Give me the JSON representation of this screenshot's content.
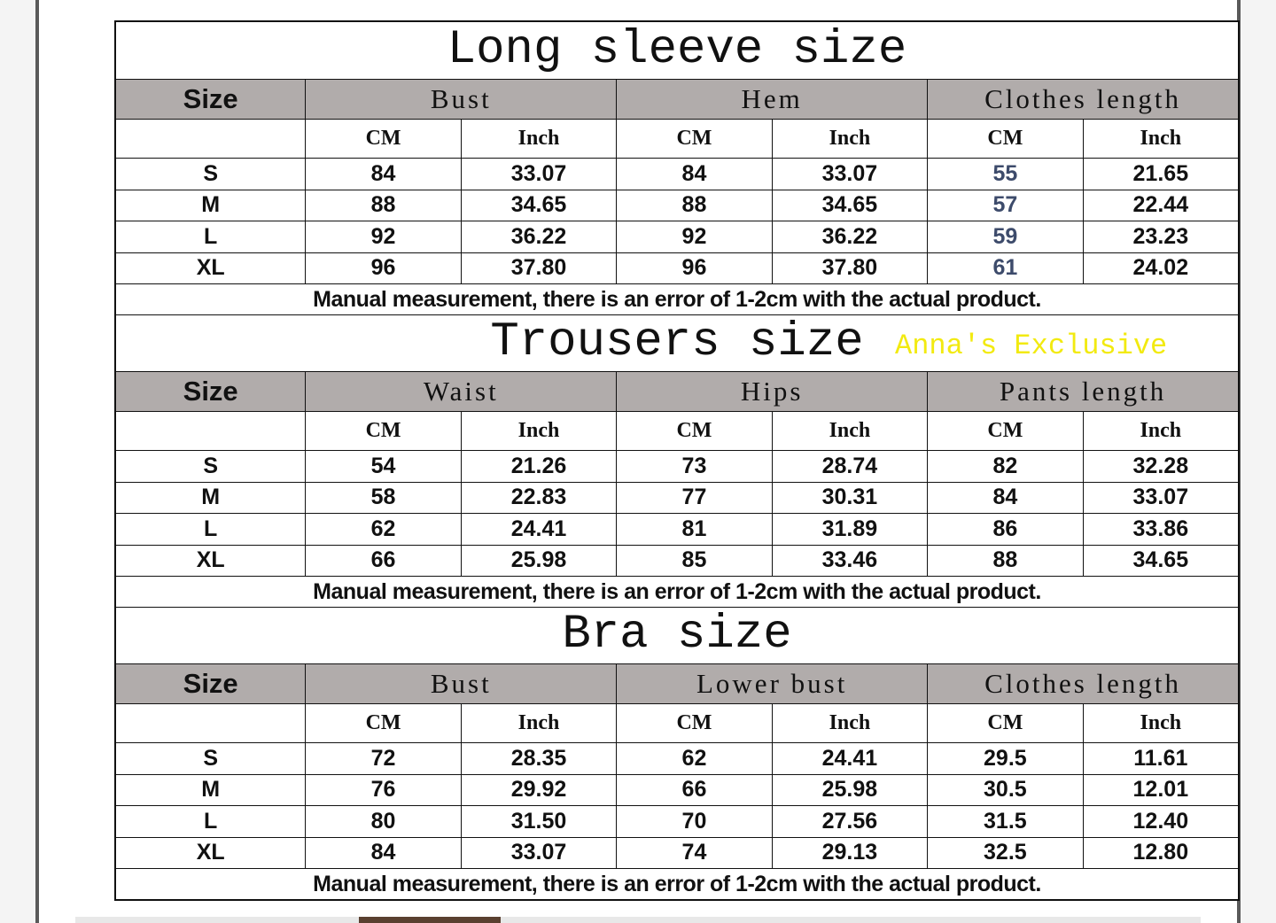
{
  "sections": [
    {
      "title": "Long sleeve size",
      "size_label": "Size",
      "groups": [
        "Bust",
        "Hem",
        "Clothes length"
      ],
      "units": [
        "CM",
        "Inch",
        "CM",
        "Inch",
        "CM",
        "Inch"
      ],
      "rows": [
        [
          "S",
          "84",
          "33.07",
          "84",
          "33.07",
          "55",
          "21.65"
        ],
        [
          "M",
          "88",
          "34.65",
          "88",
          "34.65",
          "57",
          "22.44"
        ],
        [
          "L",
          "92",
          "36.22",
          "92",
          "36.22",
          "59",
          "23.23"
        ],
        [
          "XL",
          "96",
          "37.80",
          "96",
          "37.80",
          "61",
          "24.02"
        ]
      ],
      "highlight_column": 5,
      "note": "Manual measurement, there is an error of 1-2cm with the actual product."
    },
    {
      "title": "Trousers size",
      "size_label": "Size",
      "groups": [
        "Waist",
        "Hips",
        "Pants length"
      ],
      "units": [
        "CM",
        "Inch",
        "CM",
        "Inch",
        "CM",
        "Inch"
      ],
      "rows": [
        [
          "S",
          "54",
          "21.26",
          "73",
          "28.74",
          "82",
          "32.28"
        ],
        [
          "M",
          "58",
          "22.83",
          "77",
          "30.31",
          "84",
          "33.07"
        ],
        [
          "L",
          "62",
          "24.41",
          "81",
          "31.89",
          "86",
          "33.86"
        ],
        [
          "XL",
          "66",
          "25.98",
          "85",
          "33.46",
          "88",
          "34.65"
        ]
      ],
      "note": "Manual measurement, there is an error of 1-2cm with the actual product."
    },
    {
      "title": "Bra size",
      "size_label": "Size",
      "groups": [
        "Bust",
        "Lower bust",
        "Clothes length"
      ],
      "units": [
        "CM",
        "Inch",
        "CM",
        "Inch",
        "CM",
        "Inch"
      ],
      "rows": [
        [
          "S",
          "72",
          "28.35",
          "62",
          "24.41",
          "29.5",
          "11.61"
        ],
        [
          "M",
          "76",
          "29.92",
          "66",
          "25.98",
          "30.5",
          "12.01"
        ],
        [
          "L",
          "80",
          "31.50",
          "70",
          "27.56",
          "31.5",
          "12.40"
        ],
        [
          "XL",
          "84",
          "33.07",
          "74",
          "29.13",
          "32.5",
          "12.80"
        ]
      ],
      "note": "Manual measurement, there is an error of 1-2cm with the actual product."
    }
  ],
  "watermark": "Anna's Exclusive",
  "colors": {
    "header_bg": "#b1acab",
    "highlight_text": "#3d4b6b",
    "watermark": "#f2ea10"
  }
}
